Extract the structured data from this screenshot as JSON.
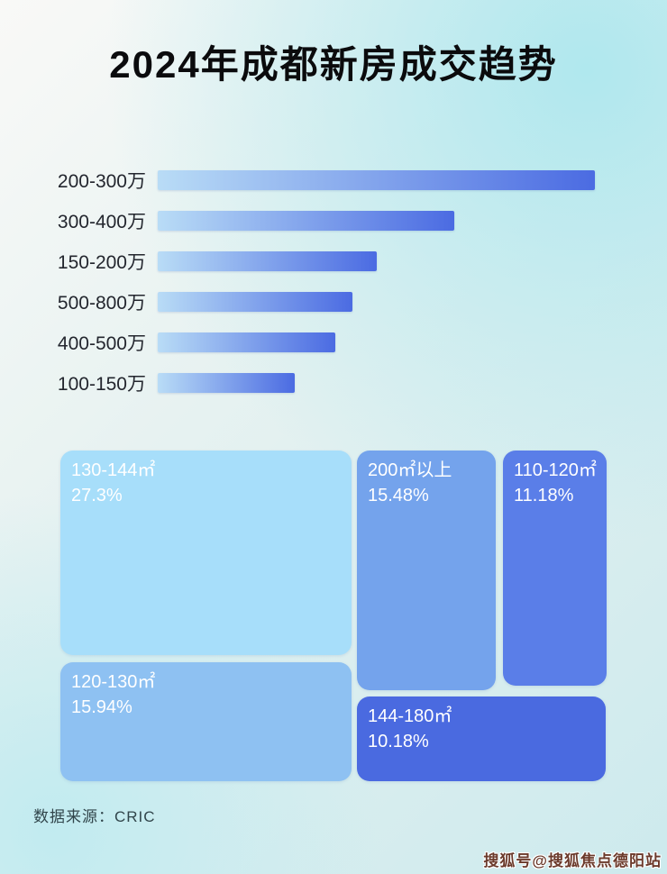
{
  "page": {
    "title": "2024年成都新房成交趋势",
    "source": "数据来源：CRIC",
    "watermark": "搜狐号@搜狐焦点德阳站"
  },
  "colors": {
    "background_tint": "#cdeaed",
    "bar_gradient_start": "#b9dcf6",
    "bar_gradient_end": "#4b6be2",
    "bar_label_text": "#23262e",
    "treemap_text": "#ffffff",
    "watermark_text": "#6b3a2b"
  },
  "chart_data": [
    {
      "type": "bar",
      "orientation": "horizontal",
      "title": "2024年成都新房成交趋势",
      "categories": [
        "200-300万",
        "300-400万",
        "150-200万",
        "500-800万",
        "400-500万",
        "100-150万"
      ],
      "values_relative": [
        100,
        67.8,
        50.1,
        44.5,
        40.6,
        31.3
      ],
      "value_note": "no numeric axis or data labels shown; values are relative bar lengths (longest = 100)",
      "xlabel": "",
      "ylabel": "",
      "grid": false,
      "legend": false
    },
    {
      "type": "treemap",
      "title": "",
      "items": [
        {
          "label": "130-144㎡",
          "percent": "27.3%",
          "value": 27.3,
          "color": "#a7defa"
        },
        {
          "label": "200㎡以上",
          "percent": "15.48%",
          "value": 15.48,
          "color": "#74a3ec"
        },
        {
          "label": "110-120㎡",
          "percent": "11.18%",
          "value": 11.18,
          "color": "#5a7ee8"
        },
        {
          "label": "120-130㎡",
          "percent": "15.94%",
          "value": 15.94,
          "color": "#8ec1f2"
        },
        {
          "label": "144-180㎡",
          "percent": "10.18%",
          "value": 10.18,
          "color": "#4a6ae0"
        }
      ]
    }
  ]
}
